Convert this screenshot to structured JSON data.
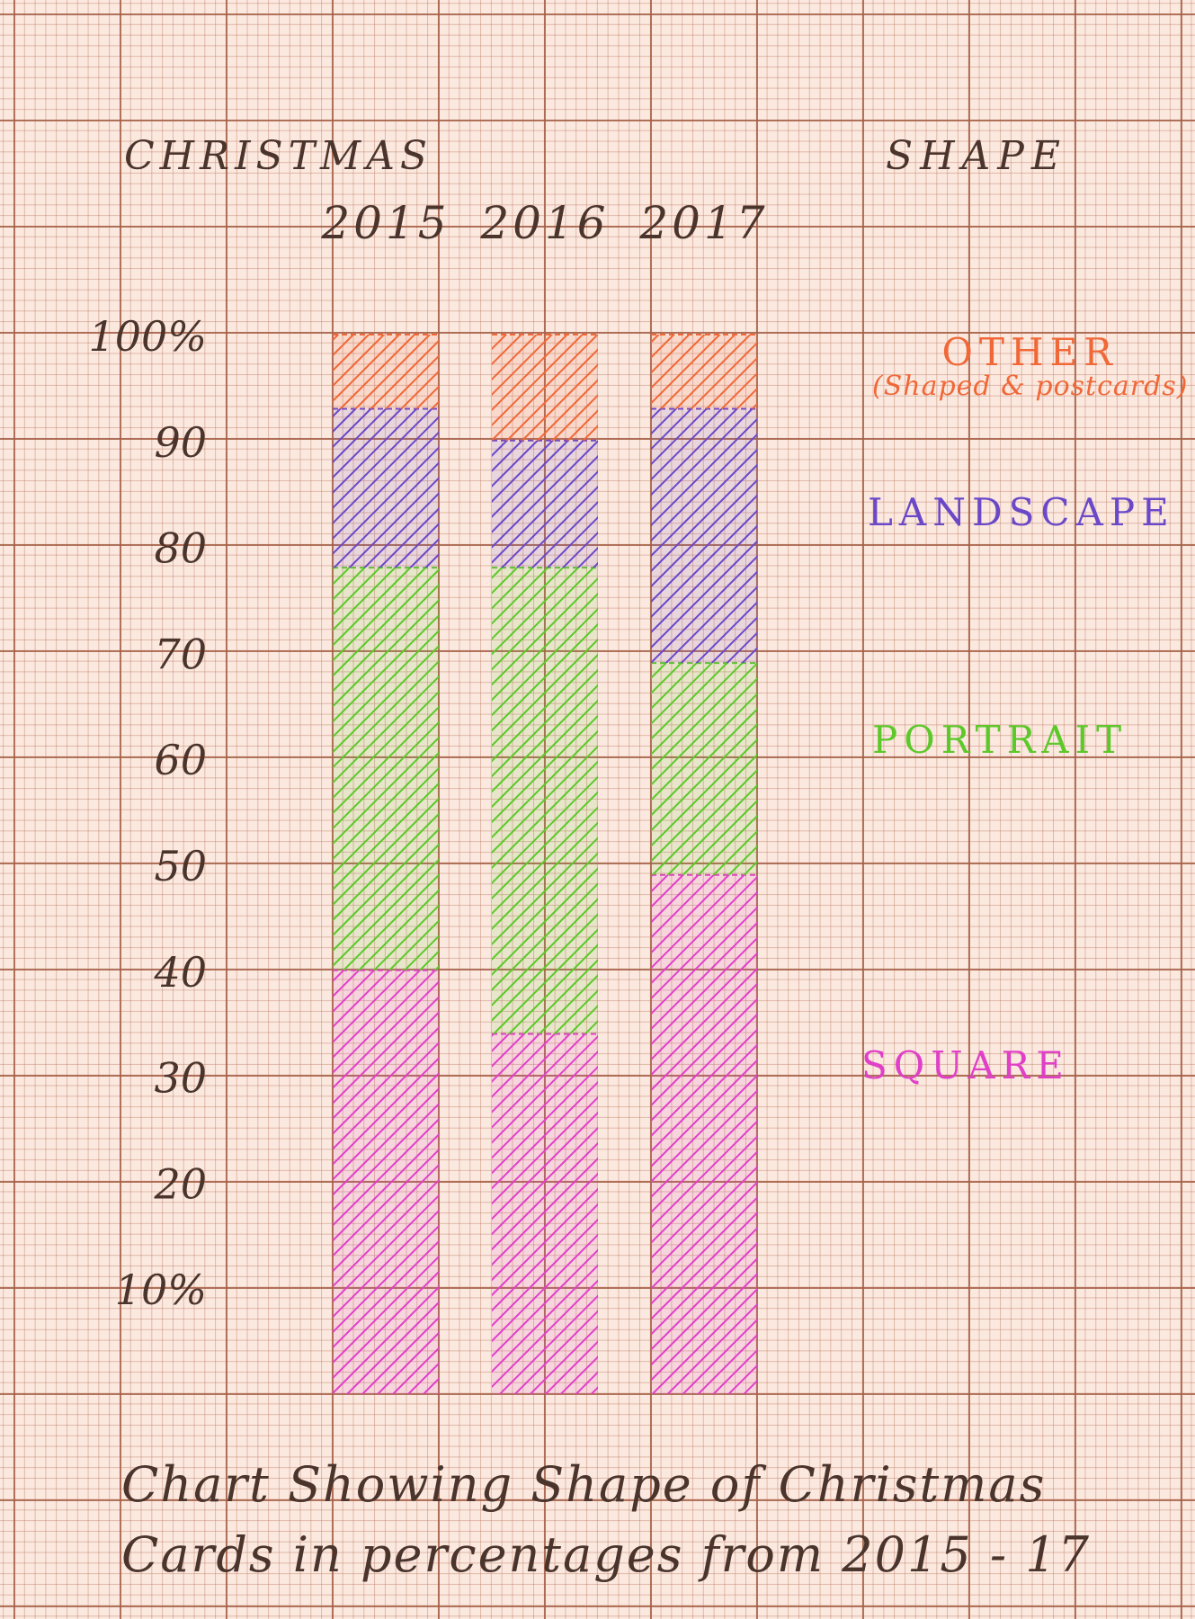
{
  "chart_data": {
    "type": "bar",
    "stacked": true,
    "title": "Chart Showing Shape of Christmas Cards in percentages from 2015 - 17",
    "heading": "CHRISTMAS",
    "legend_title": "SHAPE",
    "categories": [
      "2015",
      "2016",
      "2017"
    ],
    "series": [
      {
        "name": "SQUARE",
        "color": "#e040c8",
        "values": [
          40,
          34,
          49
        ]
      },
      {
        "name": "PORTRAIT",
        "color": "#5cc82a",
        "values": [
          38,
          44,
          20
        ]
      },
      {
        "name": "LANDSCAPE",
        "color": "#6a48c8",
        "values": [
          15,
          12,
          24
        ]
      },
      {
        "name": "OTHER",
        "sublabel": "(Shaped & postcards)",
        "color": "#f06838",
        "values": [
          7,
          10,
          7
        ]
      }
    ],
    "ylim": [
      0,
      100
    ],
    "y_ticks": [
      {
        "value": 10,
        "label": "10%"
      },
      {
        "value": 20,
        "label": "20"
      },
      {
        "value": 30,
        "label": "30"
      },
      {
        "value": 40,
        "label": "40"
      },
      {
        "value": 50,
        "label": "50"
      },
      {
        "value": 60,
        "label": "60"
      },
      {
        "value": 70,
        "label": "70"
      },
      {
        "value": 80,
        "label": "80"
      },
      {
        "value": 90,
        "label": "90"
      },
      {
        "value": 100,
        "label": "100%"
      }
    ],
    "grid": true,
    "legend_position": "right"
  },
  "footer": {
    "line1": "Chart Showing Shape of Christmas",
    "line2": "Cards in percentages from 2015 - 17"
  }
}
